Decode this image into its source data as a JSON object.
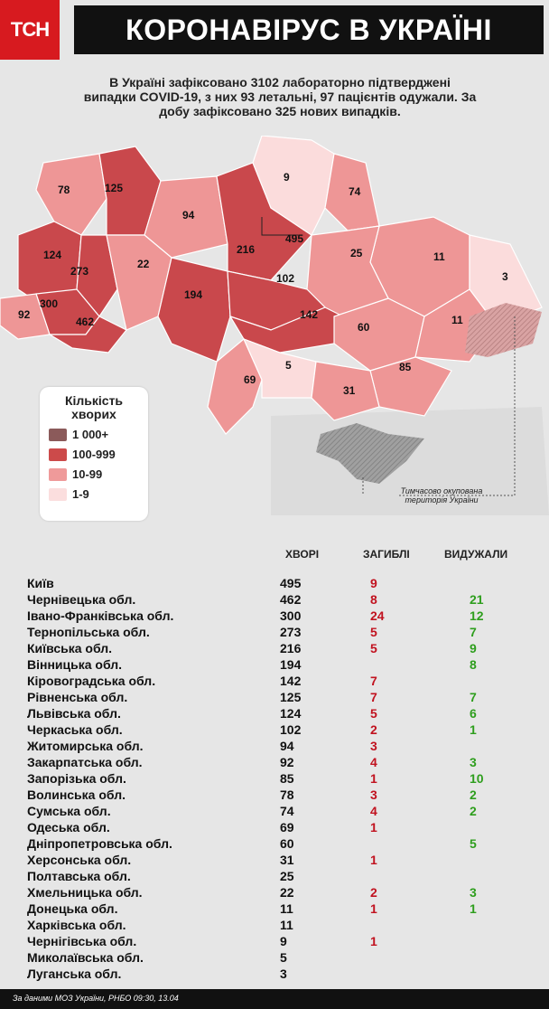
{
  "header": {
    "logo": "ТСН",
    "title": "КОРОНАВІРУС В УКРАЇНІ"
  },
  "summary": {
    "line1": "В Україні зафіксовано 3102 лабораторно підтверджені",
    "line2": "випадки COVID-19, з них 93 летальні, 97 пацієнтів одужали. За",
    "line3": "добу зафіксовано 325 нових випадків."
  },
  "map": {
    "regions": [
      {
        "label": "78"
      },
      {
        "label": "125"
      },
      {
        "label": "9"
      },
      {
        "label": "74"
      },
      {
        "label": "94"
      },
      {
        "label": "495"
      },
      {
        "label": "216"
      },
      {
        "label": "25"
      },
      {
        "label": "11"
      },
      {
        "label": "3"
      },
      {
        "label": "124"
      },
      {
        "label": "273"
      },
      {
        "label": "22"
      },
      {
        "label": "102"
      },
      {
        "label": "300"
      },
      {
        "label": "194"
      },
      {
        "label": "92"
      },
      {
        "label": "462"
      },
      {
        "label": "142"
      },
      {
        "label": "60"
      },
      {
        "label": "11"
      },
      {
        "label": "5"
      },
      {
        "label": "69"
      },
      {
        "label": "85"
      },
      {
        "label": "31"
      }
    ],
    "occupied_label_1": "Тимчасово окупована",
    "occupied_label_2": "територія України"
  },
  "legend": {
    "title_1": "Кількість",
    "title_2": "хворих",
    "items": [
      {
        "label": "1 000+",
        "color": "#8b5a5a"
      },
      {
        "label": "100-999",
        "color": "#cc4a4a"
      },
      {
        "label": "10-99",
        "color": "#ef9a9a"
      },
      {
        "label": "1-9",
        "color": "#fbdede"
      }
    ]
  },
  "table": {
    "col_cases": "ХВОРІ",
    "col_deaths": "ЗАГИБЛІ",
    "col_recovered": "ВИДУЖАЛИ",
    "rows": [
      {
        "name": "Київ",
        "cases": "495",
        "deaths": "9",
        "rec": ""
      },
      {
        "name": "Чернівецька обл.",
        "cases": "462",
        "deaths": "8",
        "rec": "21"
      },
      {
        "name": "Івано-Франківська обл.",
        "cases": "300",
        "deaths": "24",
        "rec": "12"
      },
      {
        "name": "Тернопільська обл.",
        "cases": "273",
        "deaths": "5",
        "rec": "7"
      },
      {
        "name": "Київська обл.",
        "cases": "216",
        "deaths": "5",
        "rec": "9"
      },
      {
        "name": "Вінницька обл.",
        "cases": "194",
        "deaths": "",
        "rec": "8"
      },
      {
        "name": "Кіровоградська обл.",
        "cases": "142",
        "deaths": "7",
        "rec": ""
      },
      {
        "name": "Рівненська обл.",
        "cases": "125",
        "deaths": "7",
        "rec": "7"
      },
      {
        "name": "Львівська обл.",
        "cases": "124",
        "deaths": "5",
        "rec": "6"
      },
      {
        "name": "Черкаська обл.",
        "cases": "102",
        "deaths": "2",
        "rec": "1"
      },
      {
        "name": "Житомирська обл.",
        "cases": "94",
        "deaths": "3",
        "rec": ""
      },
      {
        "name": "Закарпатська обл.",
        "cases": "92",
        "deaths": "4",
        "rec": "3"
      },
      {
        "name": "Запорізька обл.",
        "cases": "85",
        "deaths": "1",
        "rec": "10"
      },
      {
        "name": "Волинська обл.",
        "cases": "78",
        "deaths": "3",
        "rec": "2"
      },
      {
        "name": "Сумська обл.",
        "cases": "74",
        "deaths": "4",
        "rec": "2"
      },
      {
        "name": "Одеська обл.",
        "cases": "69",
        "deaths": "1",
        "rec": ""
      },
      {
        "name": "Дніпропетровська обл.",
        "cases": "60",
        "deaths": "",
        "rec": "5"
      },
      {
        "name": "Херсонська обл.",
        "cases": "31",
        "deaths": "1",
        "rec": ""
      },
      {
        "name": "Полтавська обл.",
        "cases": "25",
        "deaths": "",
        "rec": ""
      },
      {
        "name": "Хмельницька обл.",
        "cases": "22",
        "deaths": "2",
        "rec": "3"
      },
      {
        "name": "Донецька обл.",
        "cases": "11",
        "deaths": "1",
        "rec": "1"
      },
      {
        "name": "Харківська обл.",
        "cases": "11",
        "deaths": "",
        "rec": ""
      },
      {
        "name": "Чернігівська обл.",
        "cases": "9",
        "deaths": "1",
        "rec": ""
      },
      {
        "name": "Миколаївська обл.",
        "cases": "5",
        "deaths": "",
        "rec": ""
      },
      {
        "name": "Луганська обл.",
        "cases": "3",
        "deaths": "",
        "rec": ""
      }
    ]
  },
  "footer": "За даними МОЗ України, РНБО 09:30, 13.04",
  "colors": {
    "dark": "#c9484c",
    "mid": "#ee9696",
    "light": "#fbdcdc",
    "grey": "#9a9a9a"
  }
}
